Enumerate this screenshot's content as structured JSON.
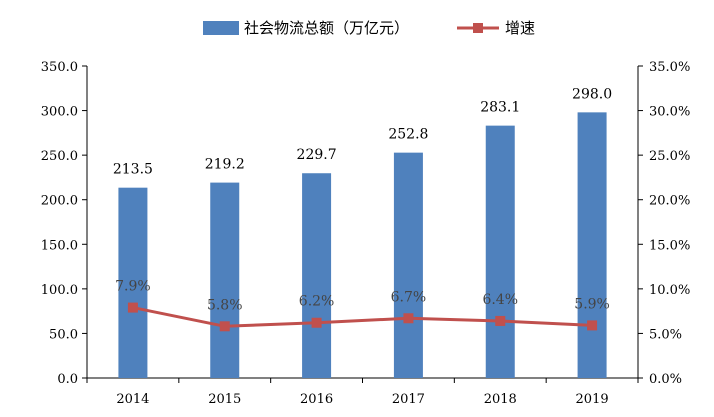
{
  "chart_data": {
    "type": "bar",
    "categories": [
      "2014",
      "2015",
      "2016",
      "2017",
      "2018",
      "2019"
    ],
    "series": [
      {
        "name": "社会物流总额（万亿元）",
        "type": "bar",
        "axis": "left",
        "values": [
          213.5,
          219.2,
          229.7,
          252.8,
          283.1,
          298.0
        ],
        "labels": [
          "213.5",
          "219.2",
          "229.7",
          "252.8",
          "283.1",
          "298.0"
        ],
        "color": "#4F81BD"
      },
      {
        "name": "增速",
        "type": "line",
        "axis": "right",
        "values": [
          7.9,
          5.8,
          6.2,
          6.7,
          6.4,
          5.9
        ],
        "labels": [
          "7.9%",
          "5.8%",
          "6.2%",
          "6.7%",
          "6.4%",
          "5.9%"
        ],
        "color": "#C0504D"
      }
    ],
    "left_axis": {
      "ylim": [
        0,
        350
      ],
      "ticks": [
        "0.0",
        "50.0",
        "100.0",
        "150.0",
        "200.0",
        "250.0",
        "300.0",
        "350.0"
      ]
    },
    "right_axis": {
      "ylim": [
        0,
        35
      ],
      "ticks": [
        "0.0%",
        "5.0%",
        "10.0%",
        "15.0%",
        "20.0%",
        "25.0%",
        "30.0%",
        "35.0%"
      ]
    },
    "legend_position": "top-center",
    "grid": false
  }
}
